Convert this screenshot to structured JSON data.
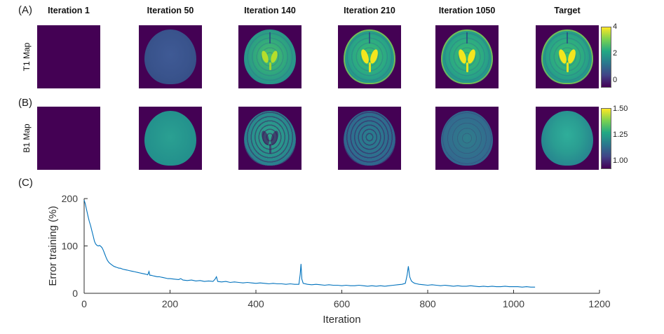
{
  "figure": {
    "panel_a_label": "(A)",
    "panel_b_label": "(B)",
    "panel_c_label": "(C)",
    "columns": [
      "Iteration 1",
      "Iteration 50",
      "Iteration 140",
      "Iteration 210",
      "Iteration 1050",
      "Target"
    ],
    "row_a_label": "T1 Map",
    "row_b_label": "B1 Map",
    "colorbar_t1": {
      "ticks": [
        "4",
        "2",
        "0"
      ]
    },
    "colorbar_b1": {
      "ticks": [
        "1.50",
        "1.25",
        "1.00"
      ]
    }
  },
  "colors": {
    "image_background": "#440154",
    "viridis_stops": [
      "#440154",
      "#414487",
      "#2a788e",
      "#22a884",
      "#7ad151",
      "#fde725"
    ],
    "line_color": "#0072BD"
  },
  "chart_data": {
    "type": "line",
    "title": "",
    "xlabel": "Iteration",
    "ylabel": "Error training (%)",
    "xlim": [
      0,
      1200
    ],
    "ylim": [
      0,
      200
    ],
    "xticks": [
      0,
      200,
      400,
      600,
      800,
      1000,
      1200
    ],
    "yticks": [
      0,
      100,
      200
    ],
    "legend": null,
    "grid": false,
    "line_color": "#0072BD",
    "points": [
      [
        0,
        197
      ],
      [
        3,
        188
      ],
      [
        6,
        175
      ],
      [
        9,
        163
      ],
      [
        12,
        152
      ],
      [
        15,
        143
      ],
      [
        18,
        132
      ],
      [
        21,
        121
      ],
      [
        24,
        110
      ],
      [
        27,
        104
      ],
      [
        30,
        101
      ],
      [
        33,
        100
      ],
      [
        36,
        101
      ],
      [
        39,
        99
      ],
      [
        42,
        96
      ],
      [
        45,
        90
      ],
      [
        48,
        83
      ],
      [
        51,
        76
      ],
      [
        54,
        70
      ],
      [
        57,
        66
      ],
      [
        60,
        63
      ],
      [
        63,
        61
      ],
      [
        66,
        59
      ],
      [
        69,
        57
      ],
      [
        72,
        56
      ],
      [
        75,
        55
      ],
      [
        78,
        54
      ],
      [
        81,
        53
      ],
      [
        84,
        53
      ],
      [
        87,
        52
      ],
      [
        90,
        51
      ],
      [
        95,
        50
      ],
      [
        100,
        49
      ],
      [
        105,
        48
      ],
      [
        110,
        47
      ],
      [
        115,
        46
      ],
      [
        120,
        45
      ],
      [
        125,
        44
      ],
      [
        130,
        43
      ],
      [
        135,
        42
      ],
      [
        140,
        41
      ],
      [
        145,
        40
      ],
      [
        148,
        39
      ],
      [
        151,
        46
      ],
      [
        153,
        38
      ],
      [
        156,
        38
      ],
      [
        160,
        37
      ],
      [
        165,
        36
      ],
      [
        170,
        35
      ],
      [
        175,
        35
      ],
      [
        180,
        34
      ],
      [
        185,
        33
      ],
      [
        190,
        32
      ],
      [
        195,
        31
      ],
      [
        200,
        31
      ],
      [
        210,
        30
      ],
      [
        220,
        29
      ],
      [
        225,
        31
      ],
      [
        230,
        28
      ],
      [
        240,
        27
      ],
      [
        250,
        28
      ],
      [
        260,
        26
      ],
      [
        270,
        27
      ],
      [
        280,
        25
      ],
      [
        290,
        26
      ],
      [
        300,
        25
      ],
      [
        305,
        30
      ],
      [
        308,
        35
      ],
      [
        311,
        25
      ],
      [
        320,
        24
      ],
      [
        330,
        25
      ],
      [
        340,
        23
      ],
      [
        350,
        24
      ],
      [
        360,
        23
      ],
      [
        370,
        22
      ],
      [
        380,
        23
      ],
      [
        390,
        22
      ],
      [
        400,
        21
      ],
      [
        410,
        22
      ],
      [
        420,
        21
      ],
      [
        430,
        20
      ],
      [
        440,
        21
      ],
      [
        450,
        20
      ],
      [
        460,
        20
      ],
      [
        470,
        19
      ],
      [
        480,
        20
      ],
      [
        490,
        19
      ],
      [
        500,
        19
      ],
      [
        503,
        40
      ],
      [
        505,
        62
      ],
      [
        507,
        30
      ],
      [
        510,
        21
      ],
      [
        520,
        19
      ],
      [
        530,
        18
      ],
      [
        540,
        19
      ],
      [
        550,
        18
      ],
      [
        560,
        17
      ],
      [
        570,
        18
      ],
      [
        580,
        17
      ],
      [
        590,
        17
      ],
      [
        600,
        16
      ],
      [
        610,
        17
      ],
      [
        620,
        16
      ],
      [
        630,
        16
      ],
      [
        640,
        17
      ],
      [
        650,
        16
      ],
      [
        660,
        15
      ],
      [
        670,
        16
      ],
      [
        680,
        15
      ],
      [
        690,
        16
      ],
      [
        700,
        15
      ],
      [
        710,
        16
      ],
      [
        720,
        17
      ],
      [
        730,
        18
      ],
      [
        740,
        19
      ],
      [
        748,
        21
      ],
      [
        752,
        38
      ],
      [
        755,
        57
      ],
      [
        758,
        35
      ],
      [
        762,
        26
      ],
      [
        766,
        23
      ],
      [
        770,
        21
      ],
      [
        775,
        20
      ],
      [
        780,
        19
      ],
      [
        790,
        18
      ],
      [
        800,
        17
      ],
      [
        810,
        18
      ],
      [
        820,
        17
      ],
      [
        830,
        16
      ],
      [
        840,
        17
      ],
      [
        850,
        16
      ],
      [
        860,
        15
      ],
      [
        870,
        16
      ],
      [
        880,
        15
      ],
      [
        890,
        15
      ],
      [
        900,
        16
      ],
      [
        910,
        15
      ],
      [
        920,
        14
      ],
      [
        930,
        15
      ],
      [
        940,
        14
      ],
      [
        950,
        15
      ],
      [
        960,
        14
      ],
      [
        970,
        14
      ],
      [
        980,
        15
      ],
      [
        990,
        14
      ],
      [
        1000,
        14
      ],
      [
        1010,
        14
      ],
      [
        1020,
        13
      ],
      [
        1030,
        14
      ],
      [
        1040,
        13
      ],
      [
        1050,
        13
      ]
    ]
  }
}
